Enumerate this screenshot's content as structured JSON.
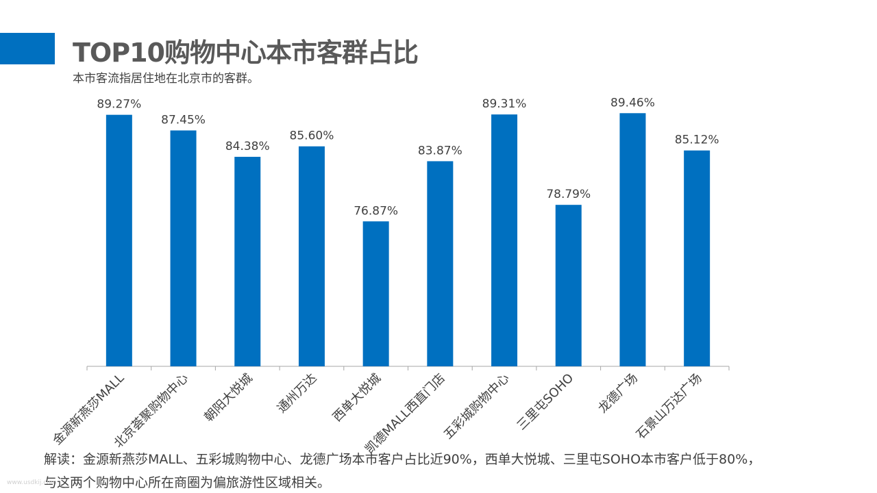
{
  "header": {
    "title": "TOP10购物中心本市客群占比",
    "subtitle": "本市客流指居住地在北京市的客群。"
  },
  "colors": {
    "accent": "#0070c0",
    "bar": "#0070c0",
    "axis": "#a6a6a6"
  },
  "chart_data": {
    "type": "bar",
    "categories": [
      "金源新燕莎MALL",
      "北京荟聚购物中心",
      "朝阳大悦城",
      "通州万达",
      "西单大悦城",
      "凯德MALL西直门店",
      "五彩城购物中心",
      "三里屯SOHO",
      "龙德广场",
      "石景山万达广场"
    ],
    "values": [
      89.27,
      87.45,
      84.38,
      85.6,
      76.87,
      83.87,
      89.31,
      78.79,
      89.46,
      85.12
    ],
    "data_labels": [
      "89.27%",
      "87.45%",
      "84.38%",
      "85.60%",
      "76.87%",
      "83.87%",
      "89.31%",
      "78.79%",
      "89.46%",
      "85.12%"
    ],
    "ylim": [
      60,
      90
    ],
    "grid": false,
    "legend": "none"
  },
  "note": {
    "line1": "解读：金源新燕莎MALL、五彩城购物中心、龙德广场本市客户占比近90%，西单大悦城、三里屯SOHO本市客户低于80%，",
    "line2": "与这两个购物中心所在商圈为偏旅游性区域相关。"
  },
  "watermark": "www.usdkij.com"
}
